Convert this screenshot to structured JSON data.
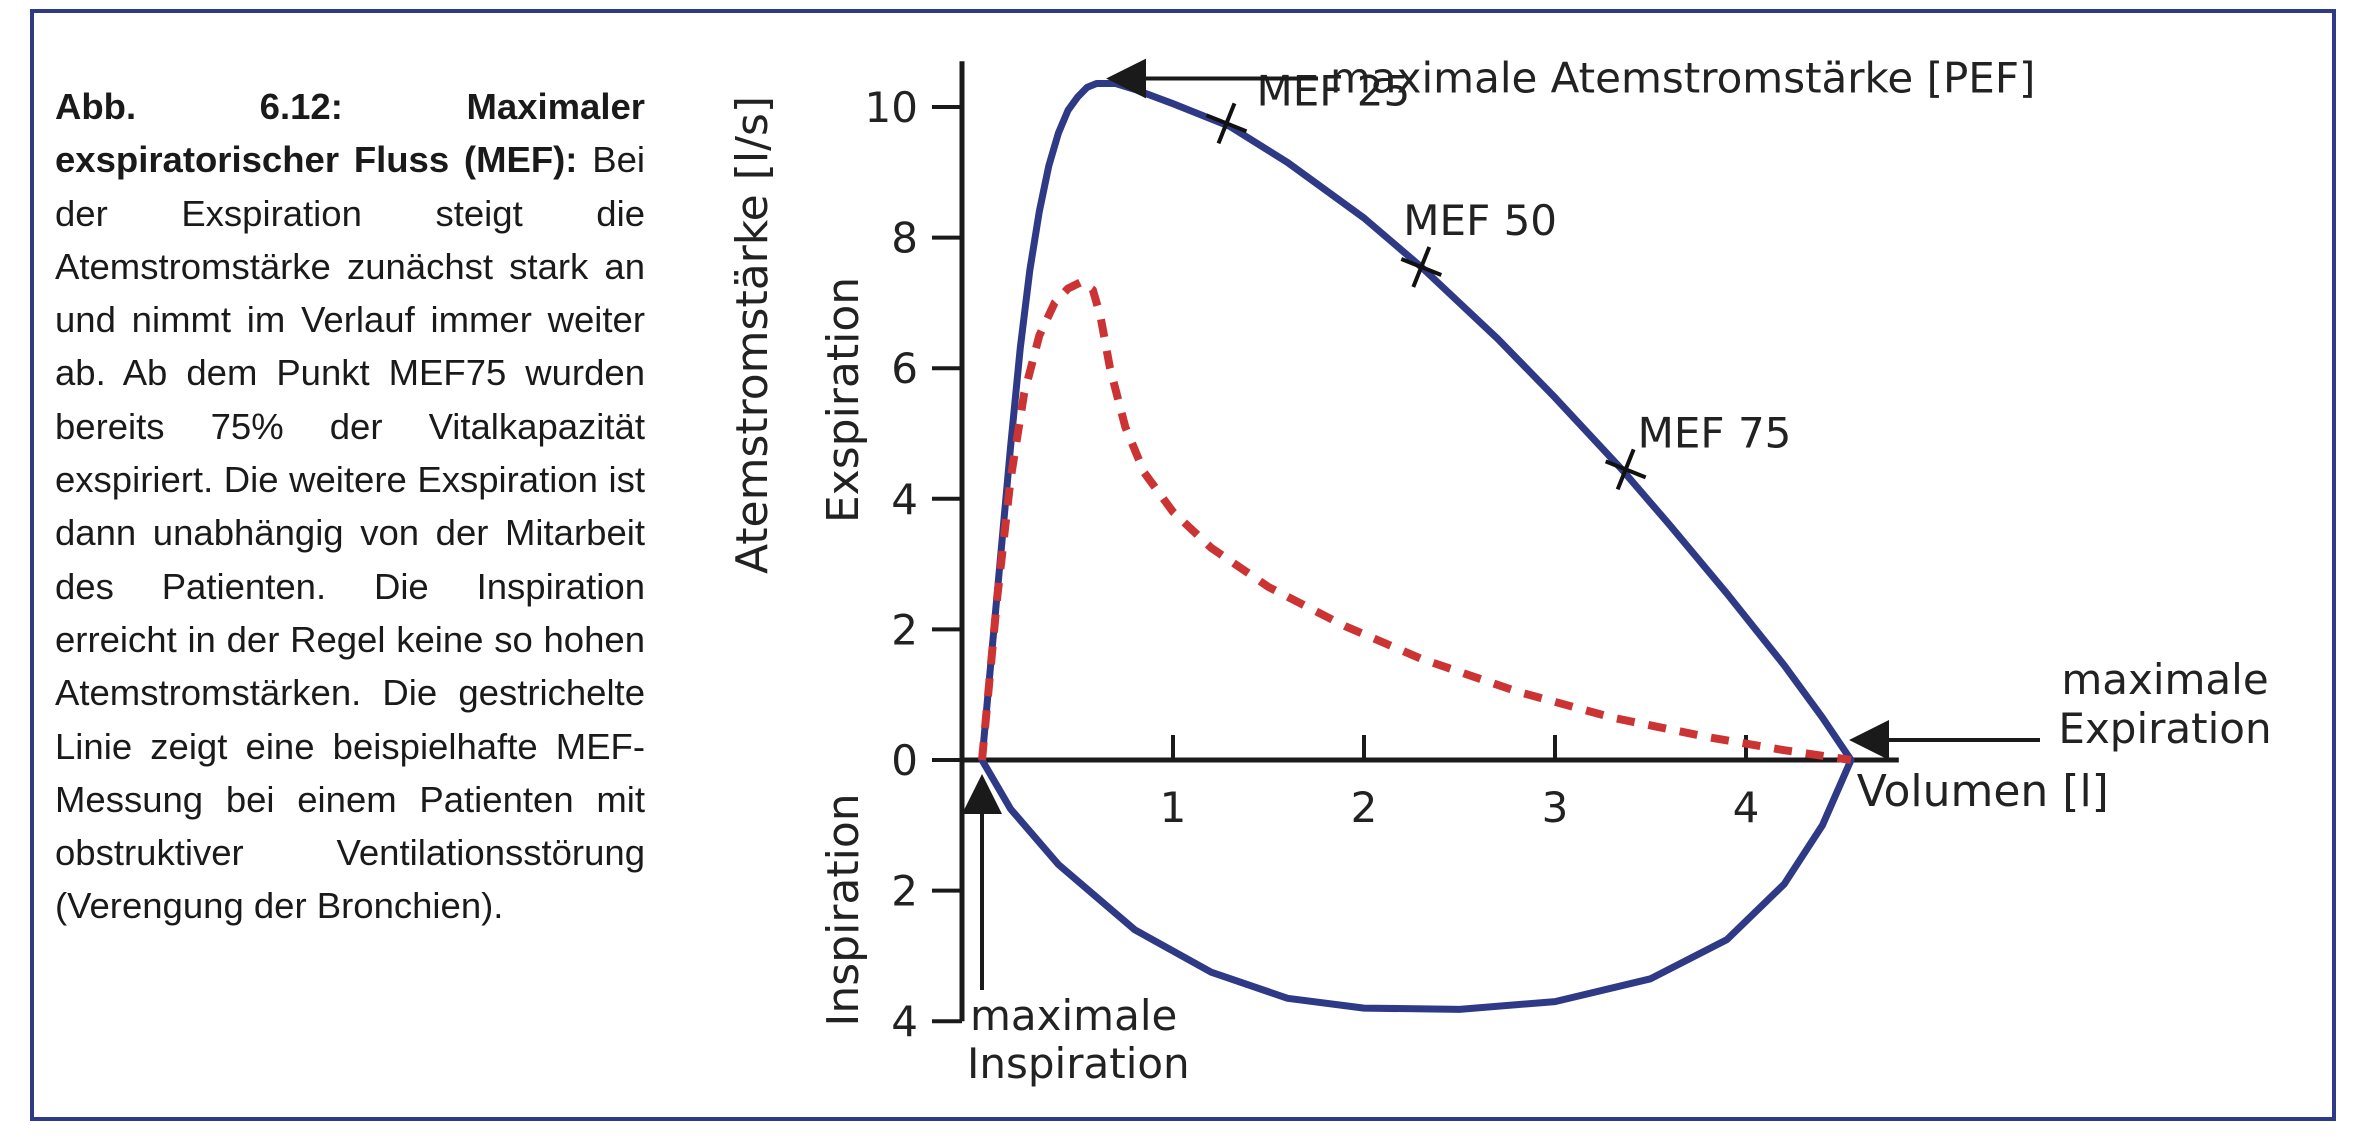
{
  "caption": {
    "bold": "Abb. 6.12: Maximaler exspiratorischer Fluss (MEF):",
    "text": " Bei der Exspiration steigt die Atemstromstärke zunächst stark an und nimmt im Verlauf immer weiter ab. Ab dem Punkt MEF75 wurden bereits 75% der Vitalkapazität exspiriert. Die weitere Exspiration ist dann unabhängig von der Mitarbeit des Patienten. Die Inspiration erreicht in der Regel keine so hohen Atemstromstärken. Die gestrichelte Linie zeigt eine beispielhafte MEF-Messung bei einem Patienten mit obstruktiver Ventilationsstörung (Verengung der Bronchien)."
  },
  "chart_data": {
    "type": "line",
    "xlabel": "Volumen [l]",
    "ylabel": "Atemstromstärke [l/s]",
    "ylabel_upper": "Exspiration",
    "ylabel_lower": "Inspiration",
    "x_ticks": [
      1,
      2,
      3,
      4
    ],
    "y_ticks_expiration": [
      0,
      2,
      4,
      6,
      8,
      10
    ],
    "y_ticks_inspiration": [
      2,
      4
    ],
    "xlim": [
      0,
      4.8
    ],
    "ylim": [
      -4,
      10.7
    ],
    "colors": {
      "normal": "#2e3a86",
      "obstructive": "#cc3333",
      "axis": "#1a1a1a"
    },
    "series": [
      {
        "style": "solid",
        "color": "#2e3a86",
        "points": [
          [
            0,
            0
          ],
          [
            0.05,
            1.6
          ],
          [
            0.1,
            3.2
          ],
          [
            0.15,
            4.8
          ],
          [
            0.2,
            6.3
          ],
          [
            0.25,
            7.5
          ],
          [
            0.3,
            8.4
          ],
          [
            0.35,
            9.1
          ],
          [
            0.4,
            9.6
          ],
          [
            0.45,
            9.95
          ],
          [
            0.5,
            10.15
          ],
          [
            0.55,
            10.3
          ],
          [
            0.6,
            10.36
          ],
          [
            0.7,
            10.36
          ],
          [
            0.8,
            10.27
          ],
          [
            1.0,
            10.05
          ],
          [
            1.3,
            9.7
          ],
          [
            1.6,
            9.15
          ],
          [
            2.0,
            8.3
          ],
          [
            2.3,
            7.55
          ],
          [
            2.7,
            6.45
          ],
          [
            3.0,
            5.55
          ],
          [
            3.35,
            4.45
          ],
          [
            3.6,
            3.6
          ],
          [
            3.9,
            2.55
          ],
          [
            4.2,
            1.45
          ],
          [
            4.4,
            0.65
          ],
          [
            4.55,
            0
          ]
        ]
      },
      {
        "style": "solid",
        "color": "#2e3a86",
        "points": [
          [
            0,
            0
          ],
          [
            0.15,
            -0.75
          ],
          [
            0.4,
            -1.6
          ],
          [
            0.8,
            -2.6
          ],
          [
            1.2,
            -3.25
          ],
          [
            1.6,
            -3.65
          ],
          [
            2.0,
            -3.8
          ],
          [
            2.5,
            -3.82
          ],
          [
            3.0,
            -3.7
          ],
          [
            3.5,
            -3.35
          ],
          [
            3.9,
            -2.75
          ],
          [
            4.2,
            -1.9
          ],
          [
            4.4,
            -1.0
          ],
          [
            4.55,
            0
          ]
        ]
      },
      {
        "style": "dashed",
        "color": "#cc3333",
        "points": [
          [
            0,
            0
          ],
          [
            0.08,
            2.5
          ],
          [
            0.15,
            4.3
          ],
          [
            0.22,
            5.6
          ],
          [
            0.3,
            6.5
          ],
          [
            0.38,
            7.0
          ],
          [
            0.45,
            7.22
          ],
          [
            0.52,
            7.32
          ],
          [
            0.58,
            7.2
          ],
          [
            0.62,
            6.8
          ],
          [
            0.67,
            6.0
          ],
          [
            0.75,
            5.1
          ],
          [
            0.85,
            4.4
          ],
          [
            1.0,
            3.8
          ],
          [
            1.2,
            3.25
          ],
          [
            1.5,
            2.65
          ],
          [
            1.9,
            2.05
          ],
          [
            2.3,
            1.55
          ],
          [
            2.8,
            1.05
          ],
          [
            3.3,
            0.65
          ],
          [
            3.8,
            0.35
          ],
          [
            4.2,
            0.15
          ],
          [
            4.55,
            0
          ]
        ]
      }
    ],
    "markers": [
      {
        "label": "MEF 25",
        "x": 1.28,
        "y": 9.75
      },
      {
        "label": "MEF 50",
        "x": 2.3,
        "y": 7.55
      },
      {
        "label": "MEF 75",
        "x": 3.37,
        "y": 4.45
      }
    ],
    "annotations": [
      {
        "text": "maximale Atemstromstärke [PEF]",
        "x": 0.65,
        "y": 10.36
      },
      {
        "text": "maximale Expiration",
        "lines": [
          "maximale",
          "Expiration"
        ],
        "x": 4.55,
        "y": 0
      },
      {
        "text": "maximale Inspiration",
        "lines": [
          "maximale",
          "Inspiration"
        ],
        "x": 0,
        "y": 0
      }
    ]
  }
}
